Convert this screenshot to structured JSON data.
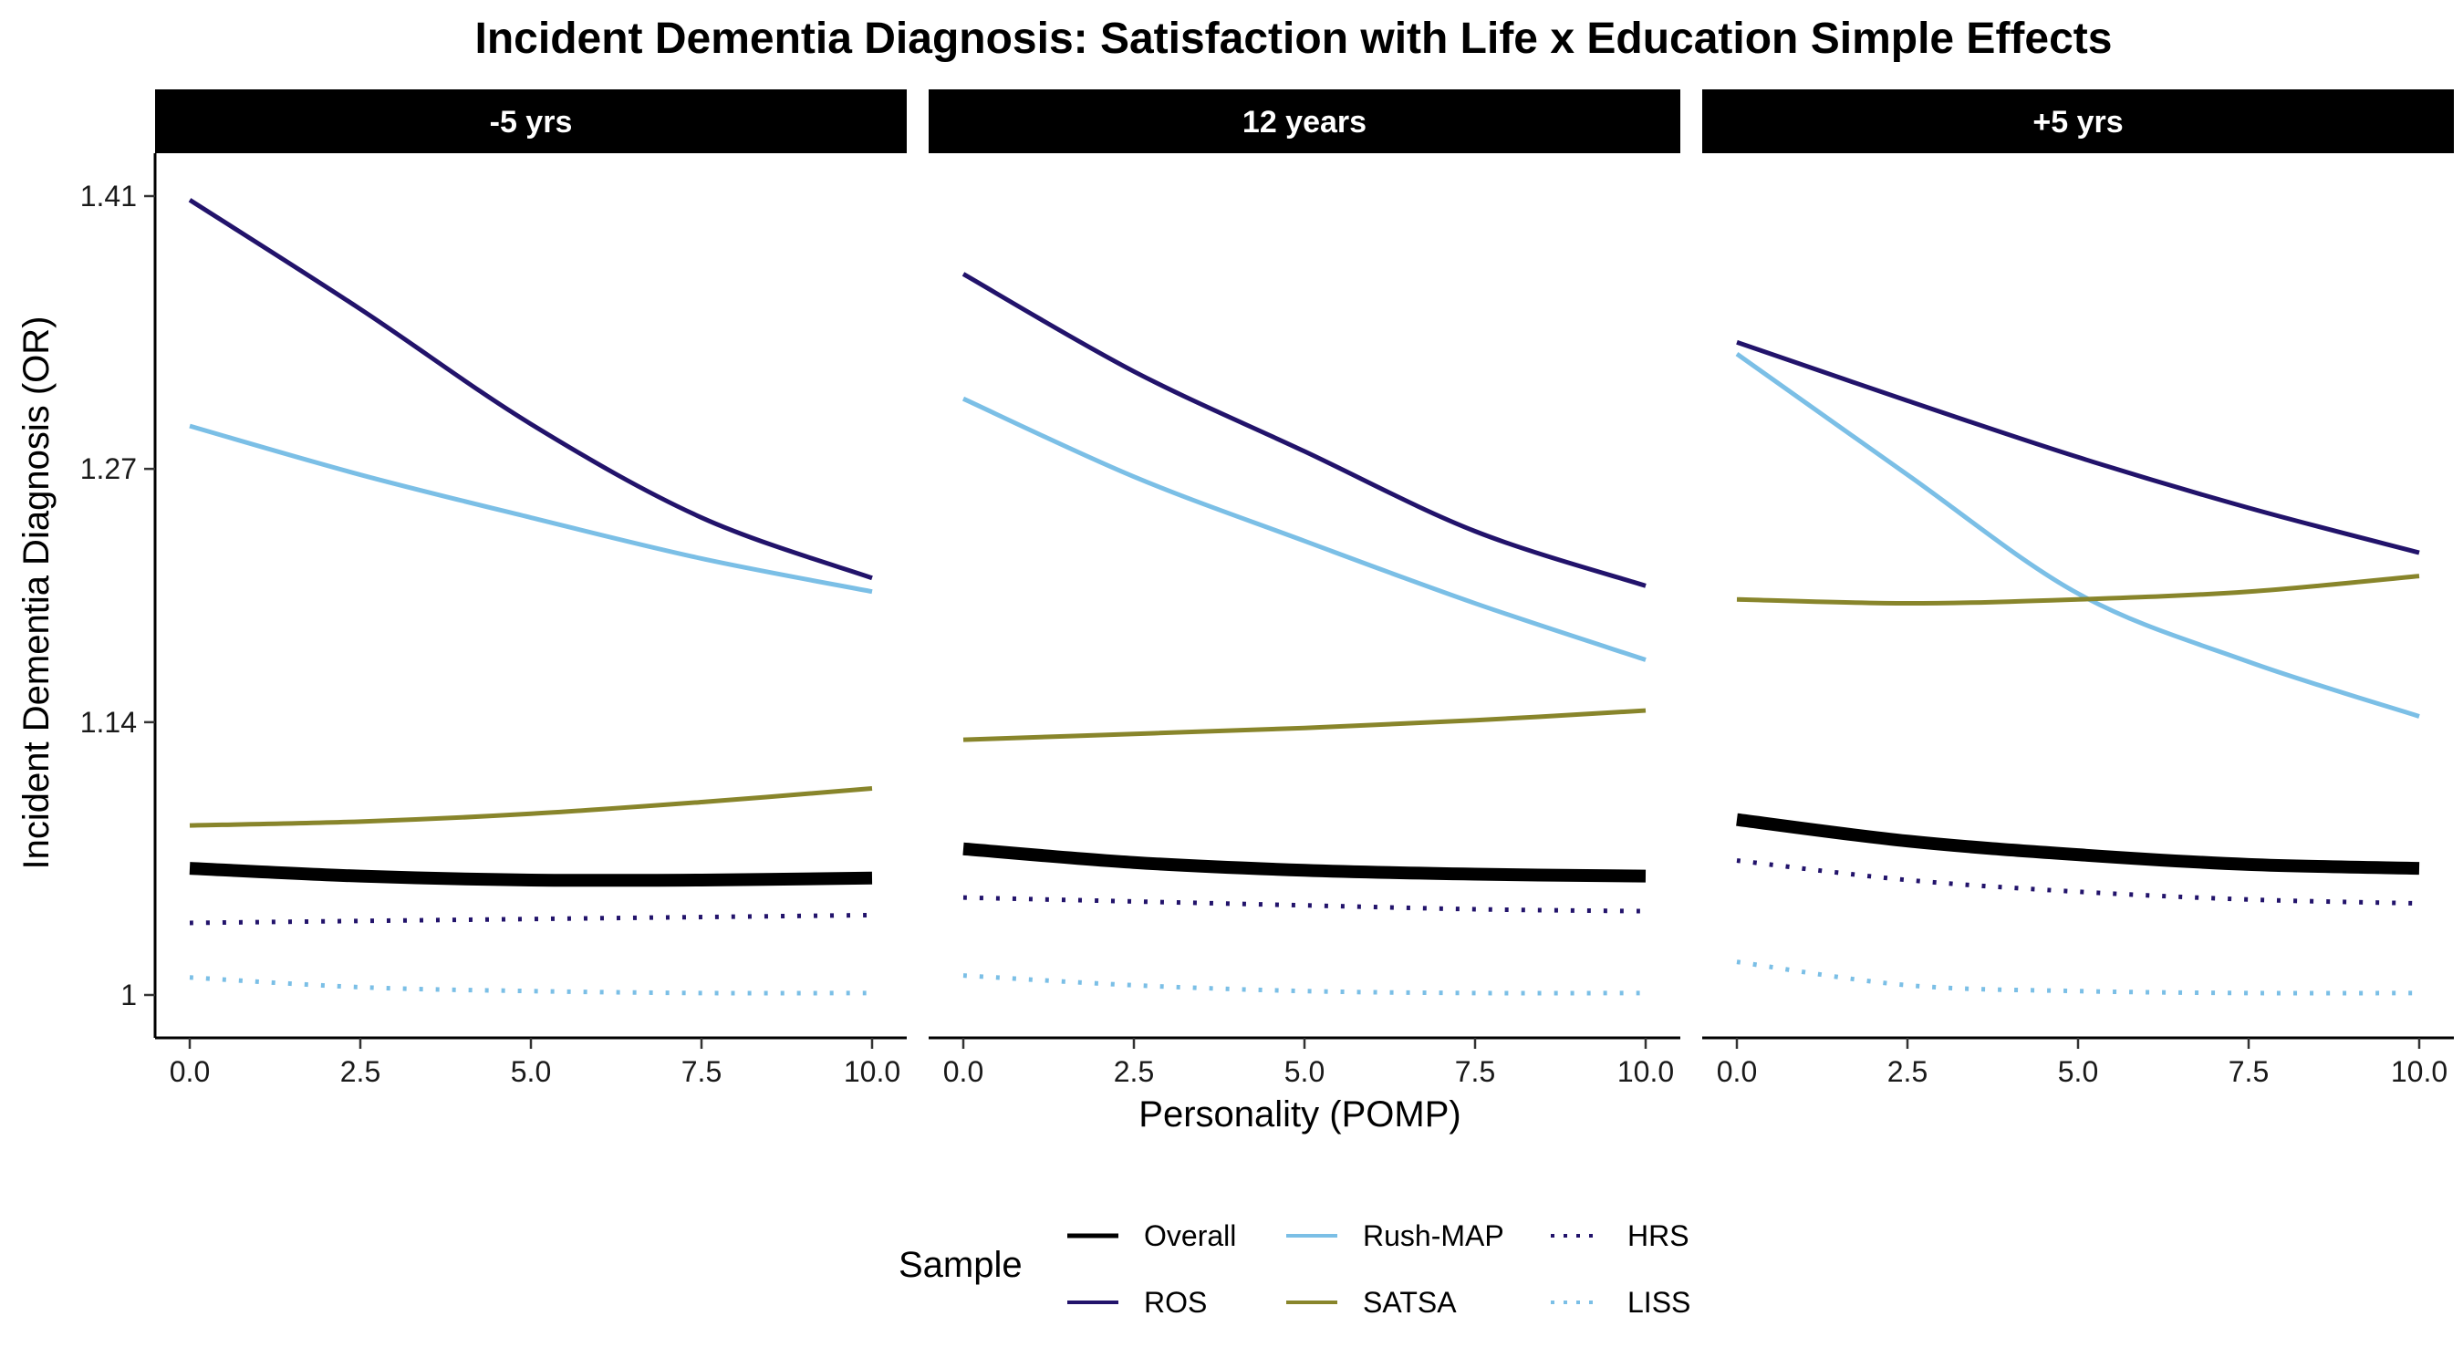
{
  "chart_data": {
    "type": "line",
    "title": "Incident Dementia Diagnosis: Satisfaction with Life x Education Simple Effects",
    "xlabel": "Personality (POMP)",
    "ylabel": "Incident Dementia Diagnosis (OR)",
    "xlim": [
      0,
      10
    ],
    "ylim": [
      0.978,
      1.432
    ],
    "x_ticks": [
      0,
      2.5,
      5,
      7.5,
      10
    ],
    "x_tick_labels": [
      "0.0",
      "2.5",
      "5.0",
      "7.5",
      "10.0"
    ],
    "y_ticks": [
      1,
      1.14,
      1.27,
      1.41
    ],
    "y_tick_labels": [
      "1",
      "1.14",
      "1.27",
      "1.41"
    ],
    "grid": false,
    "facets": [
      "-5 yrs",
      "12 years",
      "+5 yrs"
    ],
    "legend": {
      "title": "Sample",
      "position": "bottom",
      "entries": [
        "Overall",
        "ROS",
        "Rush-MAP",
        "SATSA",
        "HRS",
        "LISS"
      ]
    },
    "series_styles": {
      "Overall": {
        "color": "#000000",
        "dash": "solid",
        "width": 14
      },
      "ROS": {
        "color": "#22136b",
        "dash": "solid",
        "width": 5
      },
      "Rush-MAP": {
        "color": "#7bbfe6",
        "dash": "solid",
        "width": 5
      },
      "SATSA": {
        "color": "#88852b",
        "dash": "solid",
        "width": 5
      },
      "HRS": {
        "color": "#22136b",
        "dash": "dotted",
        "width": 5
      },
      "LISS": {
        "color": "#7bbfe6",
        "dash": "dotted",
        "width": 5
      }
    },
    "x": [
      0,
      2.5,
      5,
      7.5,
      10
    ],
    "panels": [
      {
        "facet": "-5 yrs",
        "series": [
          {
            "name": "ROS",
            "values": [
              1.408,
              1.352,
              1.293,
              1.245,
              1.214
            ]
          },
          {
            "name": "Rush-MAP",
            "values": [
              1.292,
              1.267,
              1.245,
              1.224,
              1.207
            ]
          },
          {
            "name": "SATSA",
            "values": [
              1.087,
              1.089,
              1.093,
              1.099,
              1.106
            ]
          },
          {
            "name": "Overall",
            "values": [
              1.065,
              1.061,
              1.059,
              1.059,
              1.06
            ]
          },
          {
            "name": "HRS",
            "values": [
              1.037,
              1.038,
              1.039,
              1.04,
              1.041
            ]
          },
          {
            "name": "LISS",
            "values": [
              1.009,
              1.004,
              1.002,
              1.001,
              1.001
            ]
          }
        ]
      },
      {
        "facet": "12 years",
        "series": [
          {
            "name": "ROS",
            "values": [
              1.37,
              1.32,
              1.279,
              1.238,
              1.21
            ]
          },
          {
            "name": "Rush-MAP",
            "values": [
              1.306,
              1.266,
              1.233,
              1.201,
              1.172
            ]
          },
          {
            "name": "SATSA",
            "values": [
              1.131,
              1.134,
              1.137,
              1.141,
              1.146
            ]
          },
          {
            "name": "Overall",
            "values": [
              1.075,
              1.068,
              1.064,
              1.062,
              1.061
            ]
          },
          {
            "name": "HRS",
            "values": [
              1.05,
              1.048,
              1.046,
              1.044,
              1.043
            ]
          },
          {
            "name": "LISS",
            "values": [
              1.01,
              1.005,
              1.002,
              1.001,
              1.001
            ]
          }
        ]
      },
      {
        "facet": "+5 yrs",
        "series": [
          {
            "name": "ROS",
            "values": [
              1.335,
              1.305,
              1.276,
              1.25,
              1.227
            ]
          },
          {
            "name": "Rush-MAP",
            "values": [
              1.329,
              1.267,
              1.206,
              1.171,
              1.143
            ]
          },
          {
            "name": "SATSA",
            "values": [
              1.203,
              1.201,
              1.203,
              1.207,
              1.215
            ]
          },
          {
            "name": "Overall",
            "values": [
              1.09,
              1.079,
              1.072,
              1.067,
              1.065
            ]
          },
          {
            "name": "HRS",
            "values": [
              1.069,
              1.059,
              1.053,
              1.049,
              1.047
            ]
          },
          {
            "name": "LISS",
            "values": [
              1.017,
              1.005,
              1.002,
              1.001,
              1.001
            ]
          }
        ]
      }
    ]
  }
}
